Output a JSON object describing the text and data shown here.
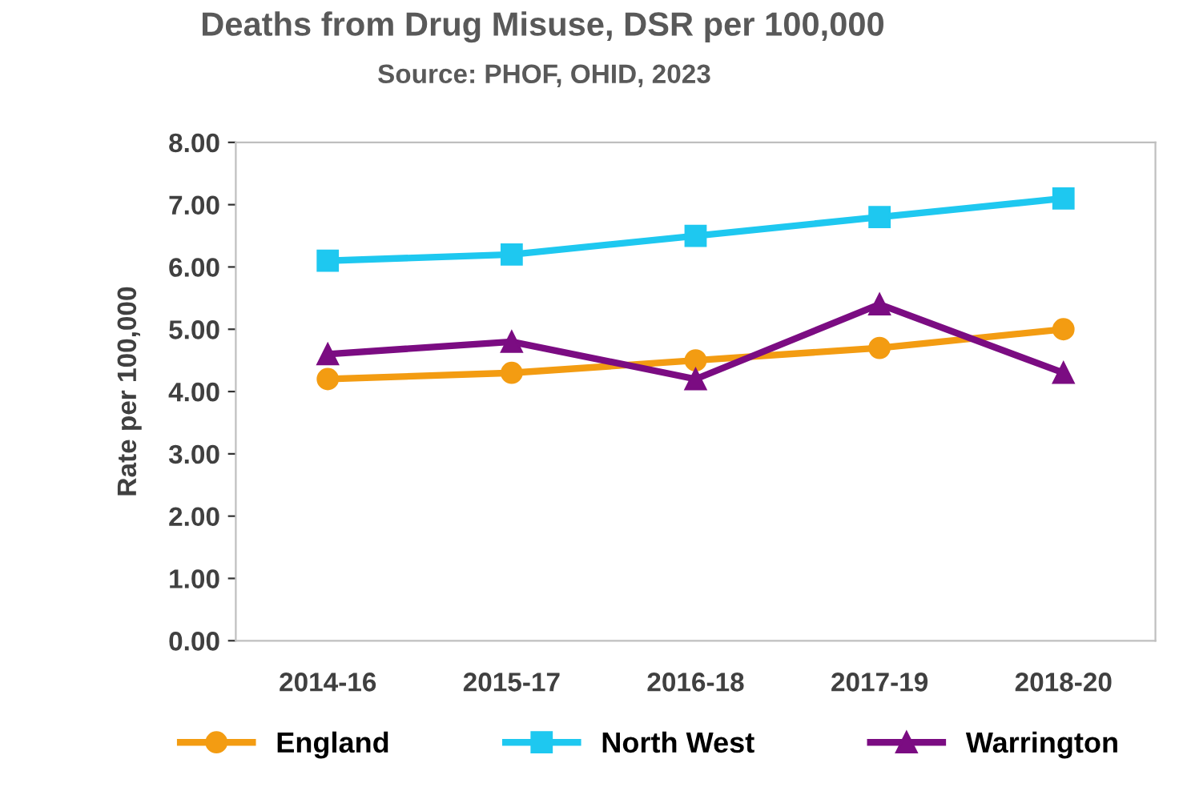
{
  "chart_data": {
    "type": "line",
    "title": "Deaths from Drug Misuse, DSR per 100,000",
    "subtitle": "Source: PHOF, OHID, 2023",
    "ylabel": "Rate per 100,000",
    "categories": [
      "2014-16",
      "2015-17",
      "2016-18",
      "2017-19",
      "2018-20"
    ],
    "series": [
      {
        "name": "England",
        "color": "#f39c12",
        "marker": "circle",
        "values": [
          4.2,
          4.3,
          4.5,
          4.7,
          5.0
        ]
      },
      {
        "name": "North West",
        "color": "#1ec8f0",
        "marker": "square",
        "values": [
          6.1,
          6.2,
          6.5,
          6.8,
          7.1
        ]
      },
      {
        "name": "Warrington",
        "color": "#7b0c82",
        "marker": "triangle",
        "values": [
          4.6,
          4.8,
          4.2,
          5.4,
          4.3
        ]
      }
    ],
    "ylim": [
      0,
      8
    ],
    "yticks": [
      {
        "value": 0,
        "label": "0.00"
      },
      {
        "value": 1,
        "label": "1.00"
      },
      {
        "value": 2,
        "label": "2.00"
      },
      {
        "value": 3,
        "label": "3.00"
      },
      {
        "value": 4,
        "label": "4.00"
      },
      {
        "value": 5,
        "label": "5.00"
      },
      {
        "value": 6,
        "label": "6.00"
      },
      {
        "value": 7,
        "label": "7.00"
      },
      {
        "value": 8,
        "label": "8.00"
      }
    ],
    "grid": false,
    "legend": "bottom",
    "line_style": "solid"
  }
}
